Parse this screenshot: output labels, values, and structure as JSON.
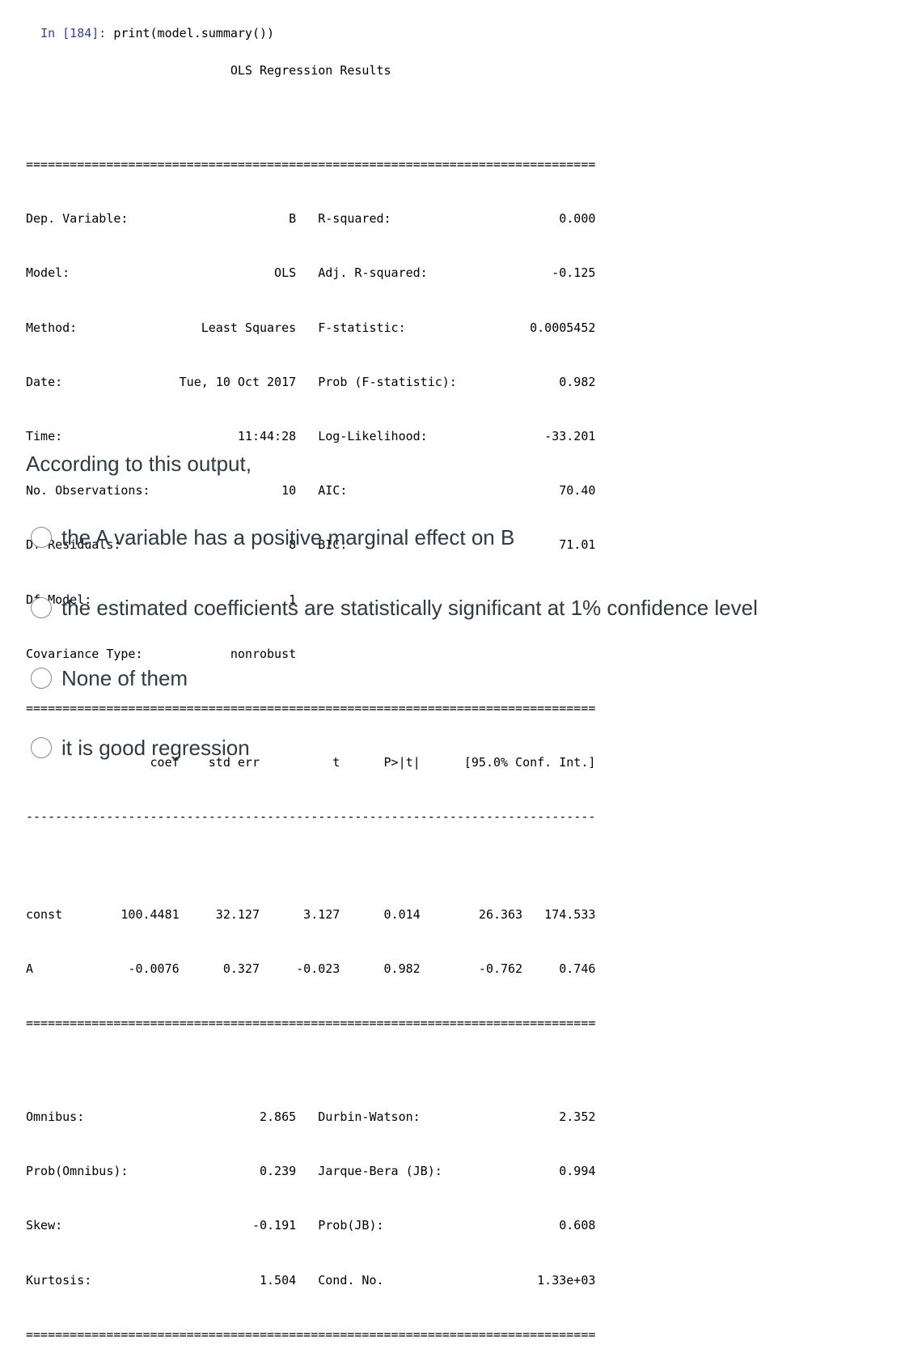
{
  "cell": {
    "prompt": "In [184]:",
    "code": " print(model.summary())"
  },
  "summary": {
    "title": "                            OLS Regression Results",
    "lines": [
      "==============================================================================",
      "Dep. Variable:                      B   R-squared:                       0.000",
      "Model:                            OLS   Adj. R-squared:                 -0.125",
      "Method:                 Least Squares   F-statistic:                 0.0005452",
      "Date:                Tue, 10 Oct 2017   Prob (F-statistic):              0.982",
      "Time:                        11:44:28   Log-Likelihood:                -33.201",
      "No. Observations:                  10   AIC:                             70.40",
      "Df Residuals:                       8   BIC:                             71.01",
      "Df Model:                           1",
      "Covariance Type:            nonrobust",
      "==============================================================================",
      "                 coef    std err          t      P>|t|      [95.0% Conf. Int.]",
      "------------------------------------------------------------------------------",
      "const        100.4481     32.127      3.127      0.014        26.363   174.533",
      "A             -0.0076      0.327     -0.023      0.982        -0.762     0.746",
      "==============================================================================",
      "Omnibus:                        2.865   Durbin-Watson:                   2.352",
      "Prob(Omnibus):                  0.239   Jarque-Bera (JB):                0.994",
      "Skew:                          -0.191   Prob(JB):                        0.608",
      "Kurtosis:                       1.504   Cond. No.                     1.33e+03",
      "=============================================================================="
    ]
  },
  "question": {
    "text": "According to this output,",
    "options": [
      "the A variable has a positive marginal effect on B",
      "the estimated coefficients are statistically significant at 1% confidence level",
      "None of them",
      "it is good regression"
    ]
  }
}
